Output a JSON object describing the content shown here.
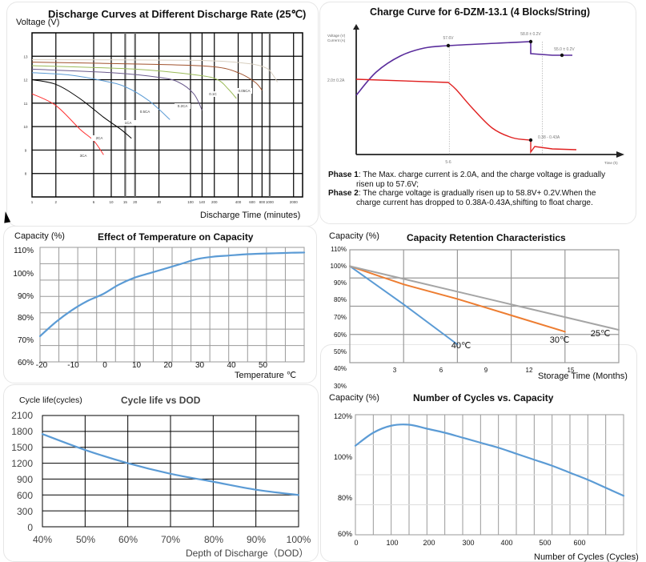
{
  "colors": {
    "grid_dark": "#000000",
    "grid_gray": "#999999",
    "curve_blue": "#5b9bd5",
    "curve_orange": "#ed7d31",
    "curve_gray": "#a5a5a5",
    "charge_voltage": "#5a2d9c",
    "charge_current": "#e02020"
  },
  "chart_data": [
    {
      "type": "line",
      "title": "Discharge Curves at Different Discharge Rate (25℃)",
      "ylabel": "Voltage (V)",
      "xlabel": "Discharge Time (minutes)",
      "xscale": "log",
      "x_ticks": [
        "1",
        "2",
        "6",
        "10",
        "15",
        "20",
        "40",
        "100",
        "140",
        "200",
        "400",
        "600",
        "800",
        "1000",
        "2000"
      ],
      "x_tick_values": [
        1,
        2,
        6,
        10,
        15,
        20,
        40,
        100,
        140,
        200,
        400,
        600,
        800,
        1000,
        2000
      ],
      "y_ticks": [
        "8",
        "9",
        "10",
        "11",
        "12",
        "13"
      ],
      "ylim": [
        7,
        14
      ],
      "grid": true,
      "series": [
        {
          "name": "3CA",
          "color": "#ff3030",
          "points": [
            [
              1,
              11.4
            ],
            [
              2,
              10.9
            ],
            [
              4,
              9.9
            ],
            [
              6,
              9.4
            ],
            [
              8,
              8.8
            ]
          ]
        },
        {
          "name": "2CA",
          "color": "#000000",
          "points": [
            [
              1,
              12.0
            ],
            [
              2,
              11.8
            ],
            [
              4,
              11.2
            ],
            [
              8,
              10.4
            ],
            [
              13,
              9.9
            ],
            [
              18,
              9.5
            ]
          ]
        },
        {
          "name": "1CA",
          "color": "#5b9bd5",
          "points": [
            [
              1,
              12.3
            ],
            [
              3,
              12.2
            ],
            [
              8,
              11.95
            ],
            [
              15,
              11.7
            ],
            [
              30,
              11.1
            ],
            [
              55,
              10.3
            ]
          ]
        },
        {
          "name": "0.5CA",
          "color": "#6a5a8c",
          "points": [
            [
              1,
              12.45
            ],
            [
              10,
              12.3
            ],
            [
              40,
              12.1
            ],
            [
              70,
              11.9
            ],
            [
              110,
              11.4
            ],
            [
              140,
              10.7
            ]
          ]
        },
        {
          "name": "0.2CA",
          "color": "#9bbb59",
          "points": [
            [
              1,
              12.6
            ],
            [
              20,
              12.45
            ],
            [
              120,
              12.2
            ],
            [
              220,
              12.0
            ],
            [
              300,
              11.6
            ],
            [
              380,
              11.2
            ]
          ]
        },
        {
          "name": "0.1C",
          "color": "#a0522d",
          "points": [
            [
              1,
              12.75
            ],
            [
              40,
              12.65
            ],
            [
              200,
              12.55
            ],
            [
              400,
              12.3
            ],
            [
              650,
              11.9
            ],
            [
              800,
              11.55
            ]
          ]
        },
        {
          "name": "0.05CA",
          "color": "#d8cfc0",
          "points": [
            [
              1,
              12.85
            ],
            [
              100,
              12.83
            ],
            [
              500,
              12.7
            ],
            [
              900,
              12.5
            ],
            [
              1100,
              12.2
            ],
            [
              1250,
              11.9
            ]
          ]
        }
      ]
    },
    {
      "type": "line",
      "title": "Charge Curve for 6-DZM-13.1 (4 Blocks/String)",
      "ylabel_lines": [
        "Voltage (V)",
        "Current (A)"
      ],
      "xlabel": "Time (h)",
      "annotations": [
        "57.6V",
        "58.8 ± 0.2V",
        "55.0 ± 0.2V",
        "2.0± 0.2A",
        "0.38 - 0.43A",
        "5-6"
      ],
      "series": [
        {
          "name": "Voltage",
          "color": "#5a2d9c",
          "points": [
            [
              0,
              0.3
            ],
            [
              0.1,
              0.55
            ],
            [
              0.22,
              0.75
            ],
            [
              0.38,
              0.88
            ],
            [
              0.5,
              0.9
            ],
            [
              0.7,
              0.92
            ],
            [
              0.72,
              0.93
            ],
            [
              0.72,
              0.82
            ],
            [
              0.85,
              0.81
            ]
          ]
        },
        {
          "name": "Current",
          "color": "#e02020",
          "points": [
            [
              0,
              0.5
            ],
            [
              0.3,
              0.48
            ],
            [
              0.38,
              0.47
            ],
            [
              0.42,
              0.4
            ],
            [
              0.5,
              0.27
            ],
            [
              0.58,
              0.17
            ],
            [
              0.65,
              0.13
            ],
            [
              0.72,
              0.13
            ],
            [
              0.72,
              0.02
            ],
            [
              0.74,
              0.09
            ],
            [
              0.87,
              0.08
            ]
          ]
        }
      ],
      "notes": [
        {
          "label": "Phase 1",
          "lines": [
            "The Max. charge current is 2.0A, and the charge voltage is gradually",
            "risen up to 57.6V;"
          ]
        },
        {
          "label": "Phase 2",
          "lines": [
            "The charge voltage is gradually risen up to 58.8V+ 0.2V.When the",
            "charge current has dropped to 0.38A-0.43A,shifting to float charge."
          ]
        }
      ]
    },
    {
      "type": "line",
      "title": "Effect of Temperature on Capacity",
      "ylabel": "Capacity (%)",
      "xlabel": "Temperature ℃",
      "x_ticks": [
        "-20",
        "-10",
        "0",
        "10",
        "20",
        "30",
        "40",
        "50"
      ],
      "y_ticks": [
        "60%",
        "70%",
        "80%",
        "90%",
        "100%",
        "110%"
      ],
      "ylim": [
        60,
        110
      ],
      "xlim": [
        -20,
        64
      ],
      "grid": true,
      "series": [
        {
          "name": "Capacity",
          "color": "#5b9bd5",
          "points": [
            [
              -20,
              73
            ],
            [
              -15,
              79
            ],
            [
              -10,
              84
            ],
            [
              -5,
              88
            ],
            [
              0,
              91
            ],
            [
              5,
              95
            ],
            [
              10,
              98
            ],
            [
              15,
              100
            ],
            [
              20,
              102
            ],
            [
              25,
              104
            ],
            [
              30,
              106
            ],
            [
              35,
              107
            ],
            [
              40,
              107.5
            ],
            [
              45,
              108
            ],
            [
              50,
              108.3
            ],
            [
              55,
              108.5
            ],
            [
              60,
              108.7
            ],
            [
              64,
              108.8
            ]
          ]
        }
      ]
    },
    {
      "type": "line",
      "title": "Capacity Retention Characteristics",
      "ylabel": "Capacity (%)",
      "xlabel": "Storage Time (Months)",
      "x_ticks": [
        "3",
        "6",
        "9",
        "12",
        "15"
      ],
      "y_ticks": [
        "30%",
        "40%",
        "50%",
        "60%",
        "70%",
        "80%",
        "90%",
        "100%",
        "110%"
      ],
      "ylim": [
        40,
        110
      ],
      "xlim": [
        0,
        18
      ],
      "grid": true,
      "series": [
        {
          "name": "40℃",
          "color": "#5b9bd5",
          "points": [
            [
              0,
              101
            ],
            [
              3.6,
              80
            ],
            [
              7.2,
              58
            ]
          ]
        },
        {
          "name": "30℃",
          "color": "#ed7d31",
          "points": [
            [
              0,
              101
            ],
            [
              3.6,
              91
            ],
            [
              7.2,
              83
            ],
            [
              10.8,
              74
            ],
            [
              14.4,
              65
            ]
          ]
        },
        {
          "name": "25℃",
          "color": "#a5a5a5",
          "points": [
            [
              0,
              101
            ],
            [
              3.6,
              94
            ],
            [
              7.2,
              87
            ],
            [
              10.8,
              80
            ],
            [
              14.4,
              73
            ],
            [
              18,
              66
            ]
          ]
        }
      ]
    },
    {
      "type": "line",
      "title": "Cycle life vs DOD",
      "ylabel": "Cycle life(cycles)",
      "xlabel": "Depth of Discharge（DOD）",
      "x_ticks": [
        "40%",
        "50%",
        "60%",
        "70%",
        "80%",
        "90%",
        "100%"
      ],
      "y_ticks": [
        "0",
        "300",
        "600",
        "900",
        "1200",
        "1500",
        "1800",
        "2100"
      ],
      "ylim": [
        0,
        2100
      ],
      "xlim": [
        40,
        100
      ],
      "grid": true,
      "series": [
        {
          "name": "Cycle life",
          "color": "#5b9bd5",
          "points": [
            [
              40,
              1750
            ],
            [
              50,
              1450
            ],
            [
              60,
              1200
            ],
            [
              70,
              1000
            ],
            [
              80,
              850
            ],
            [
              90,
              700
            ],
            [
              100,
              600
            ]
          ]
        }
      ]
    },
    {
      "type": "line",
      "title": "Number of Cycles vs. Capacity",
      "ylabel": "Capacity (%)",
      "xlabel": "Number of Cycles (Cycles)",
      "x_ticks": [
        "0",
        "100",
        "200",
        "300",
        "400",
        "500",
        "600"
      ],
      "y_ticks": [
        "60%",
        "80%",
        "100%",
        "120%"
      ],
      "ylim": [
        60,
        120
      ],
      "xlim": [
        0,
        750
      ],
      "grid": true,
      "series": [
        {
          "name": "Capacity",
          "color": "#5b9bd5",
          "points": [
            [
              0,
              104.5
            ],
            [
              50,
              111
            ],
            [
              100,
              114.5
            ],
            [
              150,
              115
            ],
            [
              200,
              113
            ],
            [
              250,
              111
            ],
            [
              300,
              108.5
            ],
            [
              350,
              106
            ],
            [
              400,
              103.5
            ],
            [
              450,
              100.5
            ],
            [
              500,
              97.5
            ],
            [
              550,
              94.5
            ],
            [
              600,
              91
            ],
            [
              650,
              87.5
            ],
            [
              700,
              83.5
            ],
            [
              750,
              79.5
            ]
          ]
        }
      ]
    }
  ]
}
